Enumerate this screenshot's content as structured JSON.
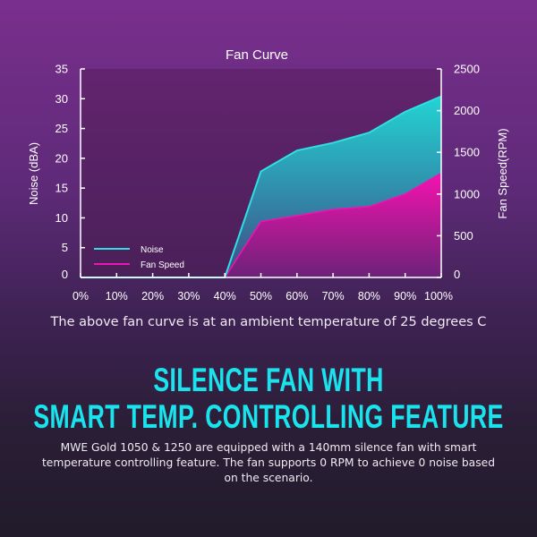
{
  "chart_data": {
    "type": "area",
    "title": "Fan Curve",
    "xlabel": "",
    "ylabel": "Noise (dBA)",
    "y2label": "Fan Speed(RPM)",
    "categories": [
      "0%",
      "10%",
      "20%",
      "30%",
      "40%",
      "50%",
      "60%",
      "70%",
      "80%",
      "90%",
      "100%"
    ],
    "x": [
      0,
      10,
      20,
      30,
      40,
      50,
      60,
      70,
      80,
      90,
      100
    ],
    "ylim": [
      0,
      35
    ],
    "yticks": [
      0,
      5,
      10,
      15,
      20,
      25,
      30,
      35
    ],
    "y2lim": [
      0,
      2500
    ],
    "y2ticks": [
      0,
      500,
      1000,
      1500,
      2000,
      2500
    ],
    "grid": false,
    "legend_placement": "bottom-left",
    "series": [
      {
        "name": "Noise",
        "axis": "left",
        "color": "#2ee0e0",
        "values": [
          0,
          0,
          0,
          0,
          0,
          17.8,
          21.3,
          22.6,
          24.3,
          27.8,
          30.4
        ]
      },
      {
        "name": "Fan Speed",
        "axis": "right",
        "color": "#f013b4",
        "values": [
          0,
          0,
          0,
          0,
          0,
          670,
          740,
          815,
          850,
          1000,
          1250
        ]
      }
    ]
  },
  "caption": "The above fan curve is at an ambient temperature of 25 degrees C",
  "heading": {
    "line1": "SILENCE FAN WITH",
    "line2": "SMART TEMP. CONTROLLING FEATURE"
  },
  "description": "MWE Gold 1050 & 1250 are equipped with a 140mm silence fan with smart temperature controlling feature. The fan supports 0 RPM to achieve 0 noise based on the scenario."
}
